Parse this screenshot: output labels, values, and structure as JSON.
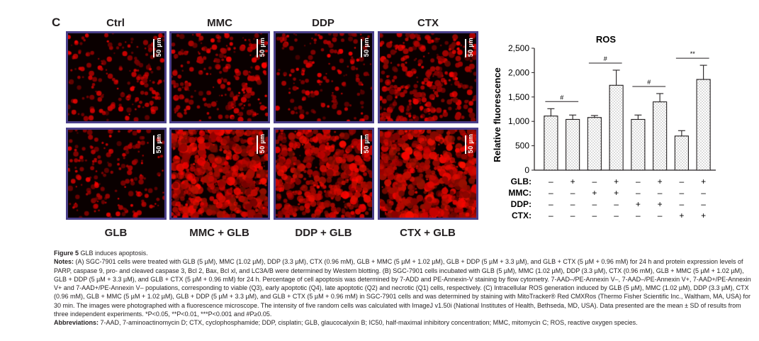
{
  "figure": {
    "panel_letter": "C",
    "top_labels": [
      "Ctrl",
      "MMC",
      "DDP",
      "CTX"
    ],
    "bottom_labels": [
      "GLB",
      "MMC + GLB",
      "DDP + GLB",
      "CTX + GLB"
    ],
    "scale_bar": "50 µm",
    "images": [
      {
        "intensity": 0.22
      },
      {
        "intensity": 0.3
      },
      {
        "intensity": 0.18
      },
      {
        "intensity": 0.4
      },
      {
        "intensity": 0.22
      },
      {
        "intensity": 0.85
      },
      {
        "intensity": 0.72
      },
      {
        "intensity": 0.88
      }
    ]
  },
  "chart_data": {
    "type": "bar",
    "title": "ROS",
    "ylabel": "Relative fluorescence",
    "ylim": [
      0,
      2500
    ],
    "yticks": [
      "0",
      "500",
      "1,000",
      "1,500",
      "2,000",
      "2,500"
    ],
    "ytick_values": [
      0,
      500,
      1000,
      1500,
      2000,
      2500
    ],
    "values": [
      1110,
      1040,
      1080,
      1740,
      1040,
      1400,
      700,
      1860
    ],
    "errors": [
      150,
      90,
      40,
      310,
      90,
      170,
      110,
      290
    ],
    "treatment_rows": [
      {
        "label": "GLB:",
        "signs": [
          "–",
          "+",
          "–",
          "+",
          "–",
          "+",
          "–",
          "+"
        ]
      },
      {
        "label": "MMC:",
        "signs": [
          "–",
          "–",
          "+",
          "+",
          "–",
          "–",
          "–",
          "–"
        ]
      },
      {
        "label": "DDP:",
        "signs": [
          "–",
          "–",
          "–",
          "–",
          "+",
          "+",
          "–",
          "–"
        ]
      },
      {
        "label": "CTX:",
        "signs": [
          "–",
          "–",
          "–",
          "–",
          "–",
          "–",
          "+",
          "+"
        ]
      }
    ],
    "significance": [
      {
        "from": 0,
        "to": 1,
        "label": "#"
      },
      {
        "from": 2,
        "to": 3,
        "label": "#"
      },
      {
        "from": 4,
        "to": 5,
        "label": "#"
      },
      {
        "from": 6,
        "to": 7,
        "label": "**"
      }
    ],
    "bar_fill": "#ffffff",
    "bar_stroke": "#231f20"
  },
  "caption": {
    "figure_label": "Figure 5",
    "figure_title": "GLB induces apoptosis.",
    "notes_label": "Notes:",
    "notes_text": "(A) SGC-7901 cells were treated with GLB (5 µM), MMC (1.02 µM), DDP (3.3 µM), CTX (0.96 mM), GLB + MMC (5 µM + 1.02 µM), GLB + DDP (5 µM + 3.3 µM), and GLB + CTX (5 µM + 0.96 mM) for 24 h and protein expression levels of PARP, caspase 9, pro- and cleaved caspase 3, Bcl 2, Bax, Bcl xl, and LC3A/B were determined by Western blotting. (B) SGC-7901 cells incubated with GLB (5 µM), MMC (1.02 µM), DDP (3.3 µM), CTX (0.96 mM), GLB + MMC (5 µM + 1.02 µM), GLB + DDP (5 µM + 3.3 µM), and GLB + CTX (5 µM + 0.96 mM) for 24 h. Percentage of cell apoptosis was determined by 7-ADD and PE-Annexin-V staining by flow cytometry. 7-AAD–/PE-Annexin V–, 7-AAD–/PE-Annexin V+, 7-AAD+/PE-Annexin V+ and 7-AAD+/PE-Annexin V– populations, corresponding to viable (Q3), early apoptotic (Q4), late apoptotic (Q2) and necrotic (Q1) cells, respectively. (C) Intracellular ROS generation induced by GLB (5 µM), MMC (1.02 µM), DDP (3.3 µM), CTX (0.96 mM), GLB + MMC (5 µM + 1.02 µM), GLB + DDP (5 µM + 3.3 µM), and GLB + CTX (5 µM + 0.96 mM) in SGC-7901 cells and was determined by staining with MitoTracker® Red CMXRos (Thermo Fisher Scientific Inc., Waltham, MA, USA) for 30 min. The images were photographed with a fluorescence microscope. The intensity of five random cells was calculated with ImageJ v1.50i (National Institutes of Health, Bethseda, MD, USA). Data presented are the mean ± SD of results from three independent experiments. *P<0.05, **P<0.01, ***P<0.001 and #P≥0.05.",
    "abbr_label": "Abbreviations:",
    "abbr_text": "7-AAD, 7-aminoactinomycin D; CTX, cyclophosphamide; DDP, cisplatin; GLB, glaucocalyxin B; IC50, half-maximal inhibitory concentration; MMC, mitomycin C; ROS, reactive oxygen species."
  }
}
